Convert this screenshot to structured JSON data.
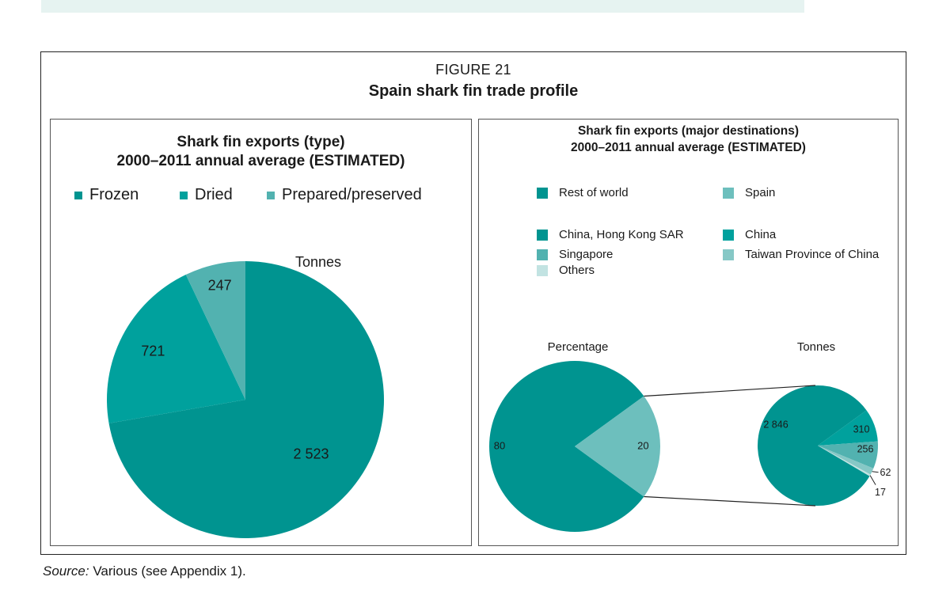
{
  "figure": {
    "number": "FIGURE 21",
    "title": "Spain shark fin trade profile"
  },
  "colors": {
    "frozen": "#009490",
    "dried": "#00a19d",
    "prepared": "#52b2b0",
    "rest_of_world": "#009490",
    "spain": "#6dbfbd",
    "hong_kong": "#009490",
    "china": "#00a19d",
    "singapore": "#52b2b0",
    "taiwan": "#86c8c6",
    "others": "#c2e3e2"
  },
  "source": {
    "label": "Source:",
    "text": " Various (see Appendix 1)."
  },
  "chart_data": [
    {
      "type": "pie",
      "title": "Shark fin exports (type)",
      "subtitle": "2000–2011 annual average (ESTIMATED)",
      "unit_label": "Tonnes",
      "legend": [
        "Frozen",
        "Dried",
        "Prepared/preserved"
      ],
      "slices": [
        {
          "label": "Frozen",
          "value": 2523,
          "display": "2 523",
          "color": "#009490"
        },
        {
          "label": "Dried",
          "value": 721,
          "display": "721",
          "color": "#00a19d"
        },
        {
          "label": "Prepared/preserved",
          "value": 247,
          "display": "247",
          "color": "#52b2b0"
        }
      ]
    },
    {
      "type": "pie",
      "title": "Shark fin exports (major destinations)",
      "subtitle": "2000–2011 annual average (ESTIMATED)",
      "legend": [
        "Rest of world",
        "Spain",
        "China, Hong Kong SAR",
        "China",
        "Singapore",
        "Taiwan Province of China",
        "Others"
      ],
      "percentage_pie": {
        "label": "Percentage",
        "slices": [
          {
            "label": "Rest of world",
            "value": 80,
            "display": "80",
            "color": "#009490"
          },
          {
            "label": "Spain",
            "value": 20,
            "display": "20",
            "color": "#6dbfbd"
          }
        ]
      },
      "tonnes_pie": {
        "label": "Tonnes",
        "slices": [
          {
            "label": "China, Hong Kong SAR",
            "value": 2846,
            "display": "2 846",
            "color": "#009490"
          },
          {
            "label": "China",
            "value": 310,
            "display": "310",
            "color": "#00a19d"
          },
          {
            "label": "Singapore",
            "value": 256,
            "display": "256",
            "color": "#52b2b0"
          },
          {
            "label": "Taiwan Province of China",
            "value": 62,
            "display": "62",
            "color": "#86c8c6"
          },
          {
            "label": "Others",
            "value": 17,
            "display": "17",
            "color": "#c2e3e2"
          }
        ]
      }
    }
  ]
}
